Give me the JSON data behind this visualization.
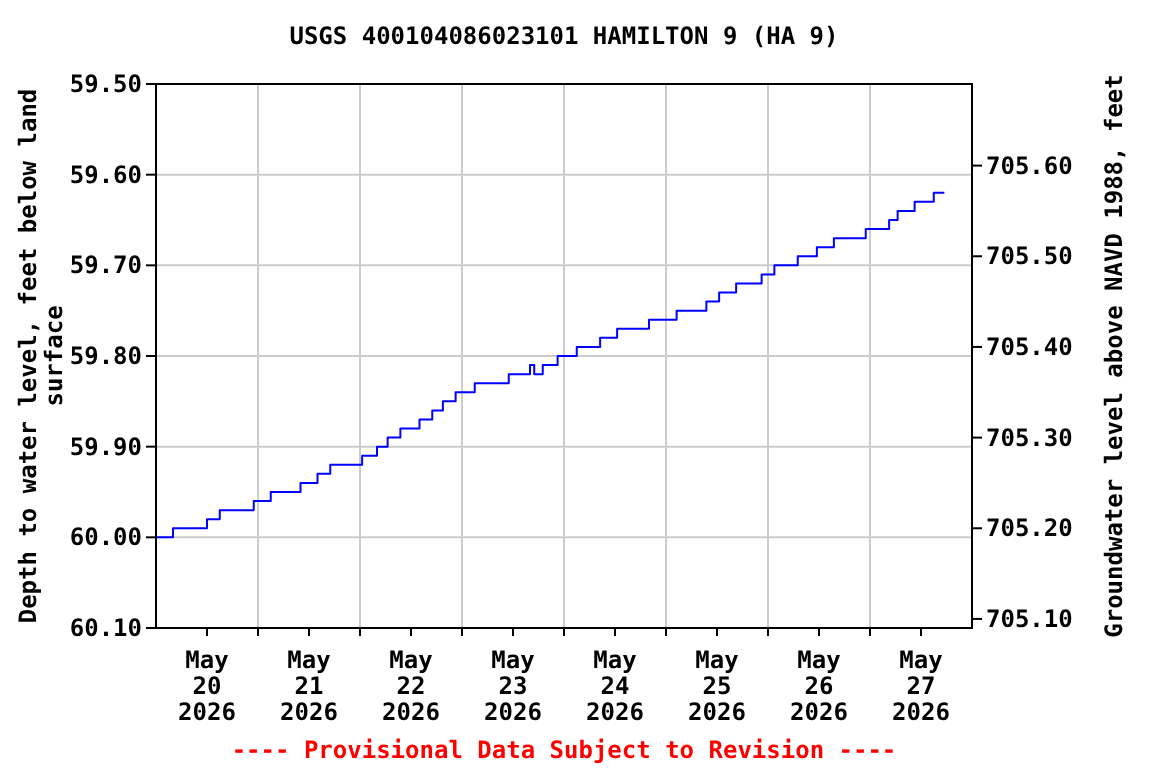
{
  "chart_data": {
    "type": "step",
    "title": "USGS 400104086023101 HAMILTON 9 (HA 9)",
    "ylabel": "Depth to water level, feet below land surface",
    "y2label": "Groundwater level above NAVD 1988, feet",
    "annotations": [
      "---- Provisional Data Subject to Revision ----"
    ],
    "x": [
      "2026-05-20T00:00",
      "2026-05-20T04:00",
      "2026-05-20T12:00",
      "2026-05-20T15:00",
      "2026-05-20T23:00",
      "2026-05-21T03:00",
      "2026-05-21T10:00",
      "2026-05-21T14:00",
      "2026-05-21T17:00",
      "2026-05-22T00:30",
      "2026-05-22T04:00",
      "2026-05-22T06:30",
      "2026-05-22T09:30",
      "2026-05-22T14:00",
      "2026-05-22T17:00",
      "2026-05-22T19:30",
      "2026-05-22T22:30",
      "2026-05-23T03:00",
      "2026-05-23T11:00",
      "2026-05-23T16:00",
      "2026-05-23T17:00",
      "2026-05-23T19:00",
      "2026-05-23T22:30",
      "2026-05-24T03:00",
      "2026-05-24T08:30",
      "2026-05-24T12:30",
      "2026-05-24T20:00",
      "2026-05-25T02:30",
      "2026-05-25T09:30",
      "2026-05-25T12:30",
      "2026-05-25T16:30",
      "2026-05-25T22:30",
      "2026-05-26T01:30",
      "2026-05-26T07:00",
      "2026-05-26T11:30",
      "2026-05-26T15:30",
      "2026-05-26T23:00",
      "2026-05-27T04:30",
      "2026-05-27T06:30",
      "2026-05-27T10:30",
      "2026-05-27T15:00",
      "2026-05-27T17:30"
    ],
    "series": [
      {
        "color": "#0000ff",
        "values": [
          60.0,
          59.99,
          59.98,
          59.97,
          59.96,
          59.95,
          59.94,
          59.93,
          59.92,
          59.91,
          59.9,
          59.89,
          59.88,
          59.87,
          59.86,
          59.85,
          59.84,
          59.83,
          59.82,
          59.81,
          59.82,
          59.81,
          59.8,
          59.79,
          59.78,
          59.77,
          59.76,
          59.75,
          59.74,
          59.73,
          59.72,
          59.71,
          59.7,
          59.69,
          59.68,
          59.67,
          59.66,
          59.65,
          59.64,
          59.63,
          59.62,
          59.62
        ]
      }
    ],
    "xlim": [
      "2026-05-20T00:00",
      "2026-05-28T00:00"
    ],
    "xticks": [
      {
        "value": "2026-05-20T12:00",
        "label": "May\n20\n2026"
      },
      {
        "value": "2026-05-21T12:00",
        "label": "May\n21\n2026"
      },
      {
        "value": "2026-05-22T12:00",
        "label": "May\n22\n2026"
      },
      {
        "value": "2026-05-23T12:00",
        "label": "May\n23\n2026"
      },
      {
        "value": "2026-05-24T12:00",
        "label": "May\n24\n2026"
      },
      {
        "value": "2026-05-25T12:00",
        "label": "May\n25\n2026"
      },
      {
        "value": "2026-05-26T12:00",
        "label": "May\n26\n2026"
      },
      {
        "value": "2026-05-27T12:00",
        "label": "May\n27\n2026"
      },
      {
        "value": "2026-05-21T00:00",
        "label": null
      },
      {
        "value": "2026-05-22T00:00",
        "label": null
      },
      {
        "value": "2026-05-23T00:00",
        "label": null
      },
      {
        "value": "2026-05-24T00:00",
        "label": null
      },
      {
        "value": "2026-05-25T00:00",
        "label": null
      },
      {
        "value": "2026-05-26T00:00",
        "label": null
      },
      {
        "value": "2026-05-27T00:00",
        "label": null
      }
    ],
    "ylim": [
      60.1,
      59.5
    ],
    "yticks": [
      {
        "value": 59.5,
        "label": "59.50"
      },
      {
        "value": 59.6,
        "label": "59.60"
      },
      {
        "value": 59.7,
        "label": "59.70"
      },
      {
        "value": 59.8,
        "label": "59.80"
      },
      {
        "value": 59.9,
        "label": "59.90"
      },
      {
        "value": 60.0,
        "label": "60.00"
      },
      {
        "value": 60.1,
        "label": "60.10"
      }
    ],
    "y2lim": [
      705.09,
      705.69
    ],
    "y2ticks": [
      {
        "value": 705.1,
        "label": "705.10"
      },
      {
        "value": 705.2,
        "label": "705.20"
      },
      {
        "value": 705.3,
        "label": "705.30"
      },
      {
        "value": 705.4,
        "label": "705.40"
      },
      {
        "value": 705.5,
        "label": "705.50"
      },
      {
        "value": 705.6,
        "label": "705.60"
      }
    ],
    "grid": true,
    "marker": "none",
    "line_style": "solid"
  }
}
